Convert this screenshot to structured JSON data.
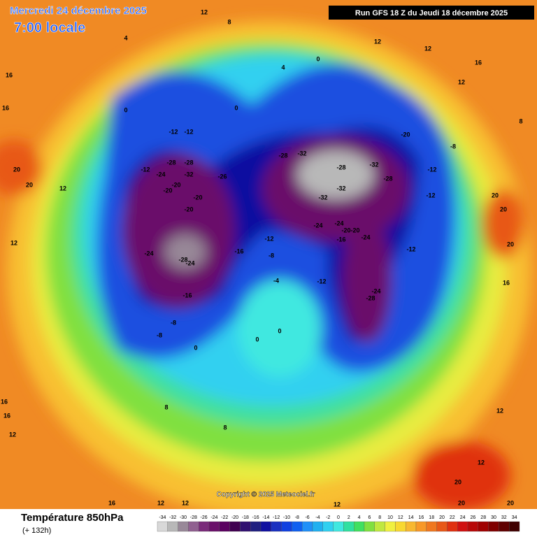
{
  "header": {
    "title": "Mercredi 24 décembre 2025",
    "time": "7:00 locale",
    "run": "Run GFS 18 Z du Jeudi 18 décembre 2025"
  },
  "map": {
    "copyright": "Copyright © 2025 Meteociel.fr",
    "contour_labels": [
      -12,
      -12,
      -28,
      -28,
      -12,
      -24,
      -32,
      -20,
      -20,
      -20,
      -20,
      -26,
      -24,
      -24,
      -28,
      -16,
      -12,
      -8,
      -16,
      -8,
      -8,
      -28,
      -32,
      -28,
      -32,
      -28,
      -32,
      -32,
      -24,
      -24,
      -20,
      -20,
      -16,
      -24,
      -24,
      -28,
      -12,
      -20,
      -12,
      -12,
      -12,
      -8,
      -4,
      0,
      0,
      0,
      0,
      0,
      0,
      4,
      12,
      12,
      16,
      12,
      12,
      8,
      4,
      20,
      20,
      16,
      16,
      12,
      12,
      8,
      20,
      20,
      20,
      16,
      16,
      16,
      12,
      8,
      8,
      12,
      12,
      16,
      12,
      20,
      20,
      20,
      12,
      12
    ]
  },
  "footer": {
    "title": "Température 850hPa",
    "lead": "(+ 132h)",
    "scale": {
      "ticks": [
        -34,
        -32,
        -30,
        -28,
        -26,
        -24,
        -22,
        -20,
        -18,
        -16,
        -14,
        -12,
        -10,
        -8,
        -6,
        -4,
        -2,
        0,
        2,
        4,
        6,
        8,
        10,
        12,
        14,
        16,
        18,
        20,
        22,
        24,
        26,
        28,
        30,
        32,
        34
      ],
      "colors": [
        "#d8d8d8",
        "#b8b8b8",
        "#988898",
        "#906090",
        "#7a2a7a",
        "#6a106a",
        "#5a0060",
        "#400050",
        "#301070",
        "#202080",
        "#1010a0",
        "#1a30c0",
        "#1040e0",
        "#1060f0",
        "#2090f8",
        "#20b0f0",
        "#30d0f0",
        "#40e8e0",
        "#30e0a0",
        "#40e060",
        "#80e040",
        "#c0e840",
        "#f0f040",
        "#f8d830",
        "#f8b830",
        "#f89828",
        "#f07820",
        "#e85818",
        "#e03010",
        "#d01010",
        "#b80808",
        "#a00000",
        "#800000",
        "#600000",
        "#400000"
      ]
    }
  }
}
